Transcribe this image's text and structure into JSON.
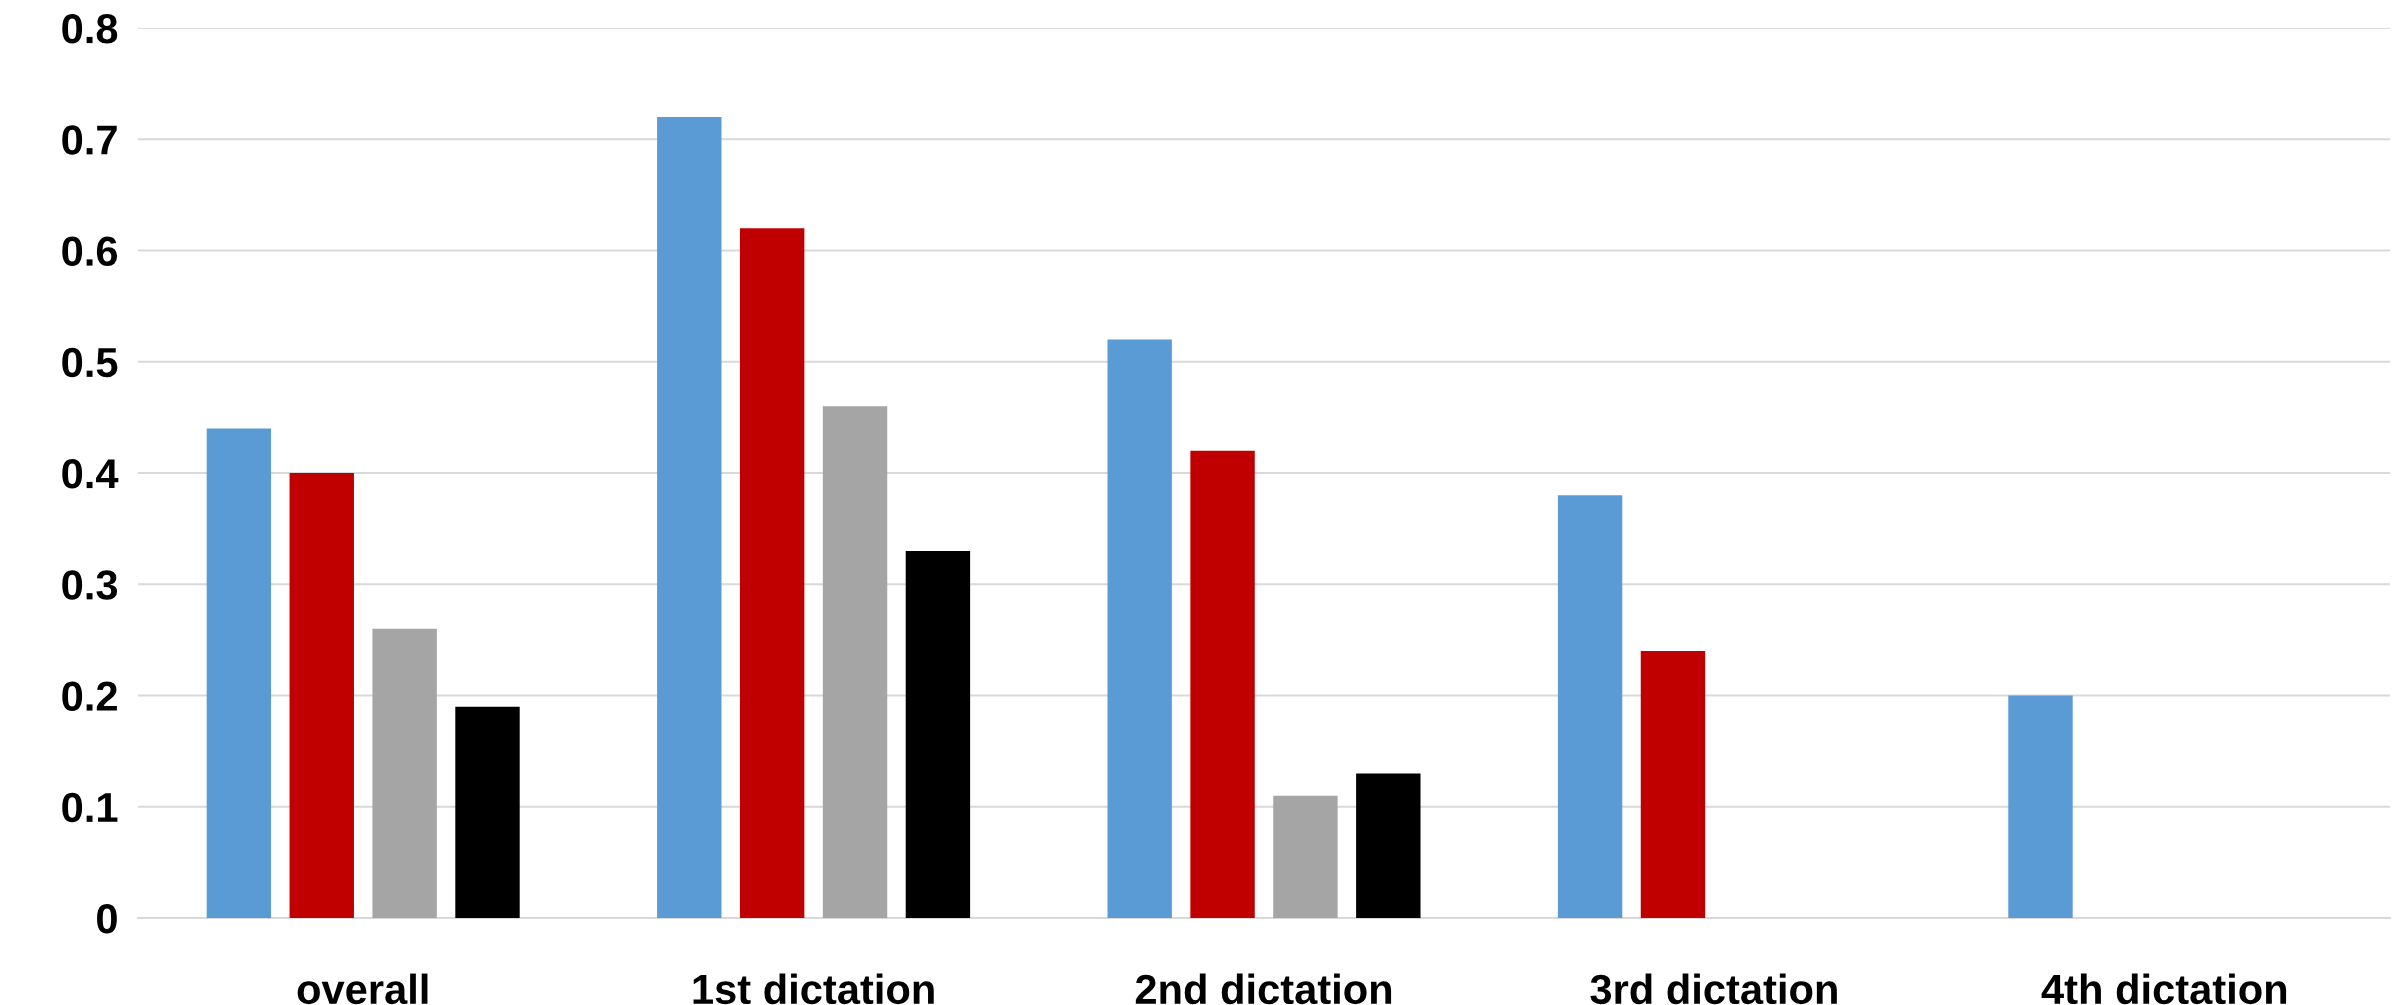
{
  "chart_data": {
    "type": "bar",
    "categories": [
      "overall",
      "1st dictation",
      "2nd dictation",
      "3rd dictation",
      "4th dictation"
    ],
    "series": [
      {
        "color": "#5b9bd5",
        "values": [
          0.44,
          0.72,
          0.52,
          0.38,
          0.2
        ]
      },
      {
        "color": "#c00000",
        "values": [
          0.4,
          0.62,
          0.42,
          0.24,
          null
        ]
      },
      {
        "color": "#a5a5a5",
        "values": [
          0.26,
          0.46,
          0.11,
          null,
          null
        ]
      },
      {
        "color": "#000000",
        "values": [
          0.19,
          0.33,
          0.13,
          null,
          null
        ]
      }
    ],
    "ylim": [
      0,
      0.8
    ],
    "yticks": [
      {
        "value": 0,
        "label": "0"
      },
      0.1,
      0.2,
      0.3,
      0.4,
      0.5,
      0.6,
      0.7,
      0.8
    ],
    "grid": "y"
  }
}
